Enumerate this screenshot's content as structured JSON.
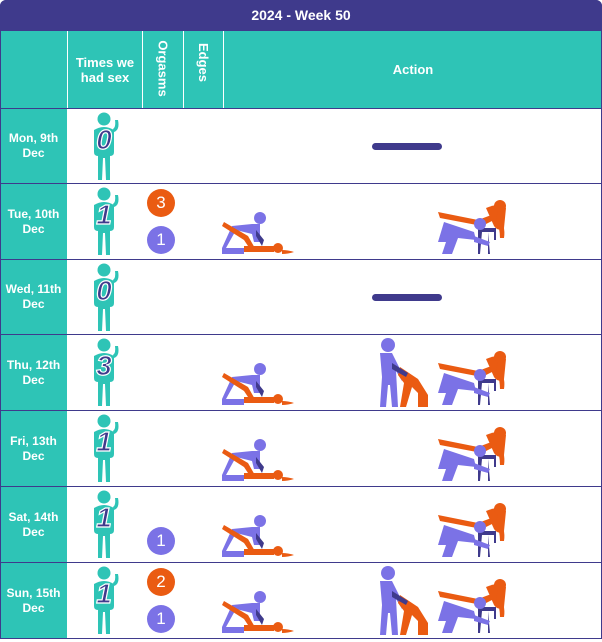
{
  "title": "2024 - Week 50",
  "headers": {
    "times": "Times we had sex",
    "orgasms": "Orgasms",
    "edges": "Edges",
    "action": "Action"
  },
  "colors": {
    "teal": "#2ec4b6",
    "navy": "#3f3a8c",
    "orange": "#ea5b12",
    "purple": "#7b72e6"
  },
  "days": [
    {
      "label": "Mon, 9th Dec",
      "times": "0",
      "orgasms": [],
      "actions": [],
      "none": true
    },
    {
      "label": "Tue, 10th Dec",
      "times": "1",
      "orgasms": [
        {
          "value": "3",
          "color": "orange"
        },
        {
          "value": "1",
          "color": "purple"
        }
      ],
      "actions": [
        "doggy-icon",
        "chair-icon"
      ],
      "none": false
    },
    {
      "label": "Wed, 11th Dec",
      "times": "0",
      "orgasms": [],
      "actions": [],
      "none": true
    },
    {
      "label": "Thu, 12th Dec",
      "times": "3",
      "orgasms": [],
      "actions": [
        "doggy-icon",
        "standing-icon",
        "chair-icon"
      ],
      "none": false
    },
    {
      "label": "Fri, 13th Dec",
      "times": "1",
      "orgasms": [],
      "actions": [
        "doggy-icon",
        "chair-icon"
      ],
      "none": false
    },
    {
      "label": "Sat, 14th Dec",
      "times": "1",
      "orgasms": [
        {
          "value": "1",
          "color": "purple"
        }
      ],
      "actions": [
        "doggy-icon",
        "chair-icon"
      ],
      "none": false
    },
    {
      "label": "Sun, 15th Dec",
      "times": "1",
      "orgasms": [
        {
          "value": "2",
          "color": "orange"
        },
        {
          "value": "1",
          "color": "purple"
        }
      ],
      "actions": [
        "doggy-icon",
        "standing-icon",
        "chair-icon"
      ],
      "none": false
    }
  ]
}
